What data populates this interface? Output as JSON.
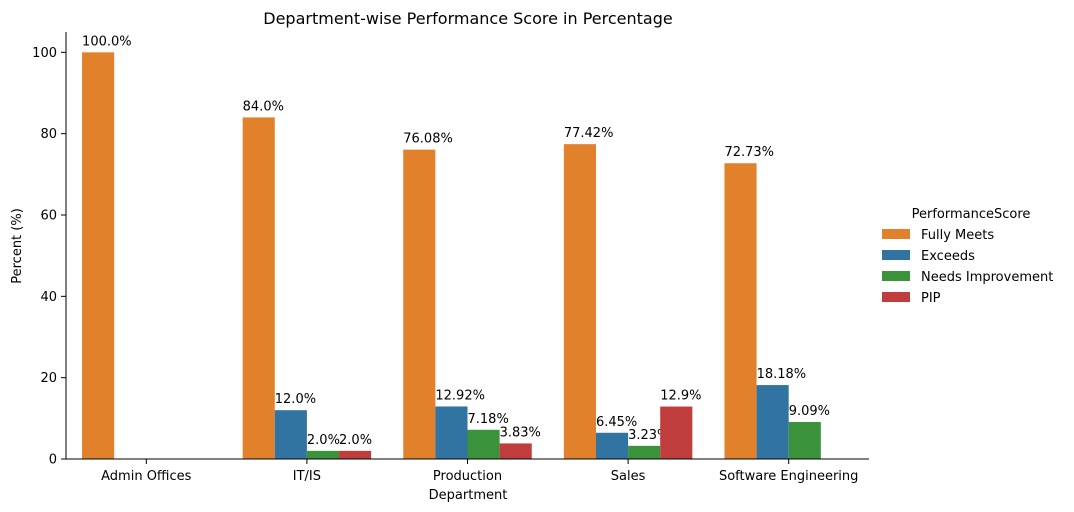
{
  "chart_data": {
    "type": "bar",
    "title": "Department-wise Performance Score in Percentage",
    "xlabel": "Department",
    "ylabel": "Percent (%)",
    "ylim": [
      0,
      105
    ],
    "yticks": [
      0,
      20,
      40,
      60,
      80,
      100
    ],
    "grid": false,
    "legend_position": "right",
    "legend_title": "PerformanceScore",
    "categories": [
      "Admin Offices",
      "IT/IS",
      "Production",
      "Sales",
      "Software Engineering"
    ],
    "series": [
      {
        "name": "Fully Meets",
        "color": "#e1812c",
        "values": [
          100.0,
          84.0,
          76.08,
          77.42,
          72.73
        ],
        "labels": [
          "100.0%",
          "84.0%",
          "76.08%",
          "77.42%",
          "72.73%"
        ]
      },
      {
        "name": "Exceeds",
        "color": "#3274a1",
        "values": [
          null,
          12.0,
          12.92,
          6.45,
          18.18
        ],
        "labels": [
          "",
          "12.0%",
          "12.92%",
          "6.45%",
          "18.18%"
        ]
      },
      {
        "name": "Needs Improvement",
        "color": "#3a923a",
        "values": [
          null,
          2.0,
          7.18,
          3.23,
          9.09
        ],
        "labels": [
          "",
          "2.0%",
          "7.18%",
          "3.23%",
          "9.09%"
        ]
      },
      {
        "name": "PIP",
        "color": "#c03d3e",
        "values": [
          null,
          2.0,
          3.83,
          12.9,
          null
        ],
        "labels": [
          "",
          "2.0%",
          "3.83%",
          "12.9%",
          ""
        ]
      }
    ]
  }
}
